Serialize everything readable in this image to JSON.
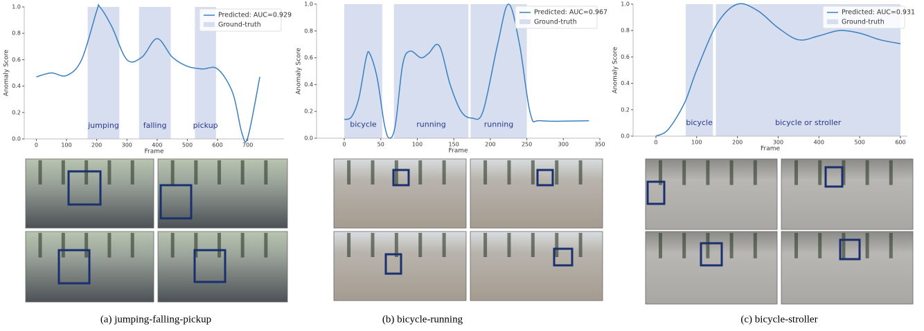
{
  "chart_data": [
    {
      "type": "line",
      "xlabel": "Frame",
      "ylabel": "Anomaly Score",
      "xlim": [
        -40,
        820
      ],
      "ylim": [
        0,
        1
      ],
      "xticks": [
        0,
        100,
        200,
        300,
        400,
        500,
        600,
        700
      ],
      "yticks": [
        {
          "value": 0,
          "label": "0.0"
        },
        0.2,
        0.4,
        0.6,
        0.8,
        {
          "value": 1,
          "label": "1.0"
        }
      ],
      "x": [
        0,
        50,
        100,
        150,
        200,
        210,
        250,
        300,
        350,
        400,
        450,
        500,
        550,
        600,
        650,
        680,
        700,
        740
      ],
      "series": [
        {
          "name": "Predicted: AUC=0.929",
          "color": "#3a7fc0",
          "values": [
            0.47,
            0.5,
            0.48,
            0.6,
            0.97,
            1.0,
            0.85,
            0.6,
            0.62,
            0.76,
            0.62,
            0.55,
            0.53,
            0.53,
            0.35,
            0.05,
            0.01,
            0.47
          ]
        }
      ],
      "ground_truth": {
        "name": "Ground-truth",
        "color": "#d6deef",
        "segments": [
          {
            "start": 170,
            "end": 275,
            "label": "jumping"
          },
          {
            "start": 340,
            "end": 445,
            "label": "falling"
          },
          {
            "start": 525,
            "end": 595,
            "label": "pickup"
          }
        ]
      }
    },
    {
      "type": "line",
      "xlabel": "Frame",
      "ylabel": "Anomaly Score",
      "xlim": [
        -38,
        350
      ],
      "ylim": [
        0,
        1
      ],
      "xticks": [
        0,
        50,
        100,
        150,
        200,
        250,
        300,
        350
      ],
      "yticks": [
        {
          "value": 0,
          "label": "0.0"
        },
        0.2,
        0.4,
        0.6,
        0.8,
        {
          "value": 1,
          "label": "1.0"
        }
      ],
      "x": [
        0,
        10,
        20,
        30,
        35,
        45,
        55,
        62,
        70,
        80,
        90,
        105,
        115,
        130,
        145,
        160,
        175,
        190,
        210,
        225,
        240,
        255,
        270,
        335
      ],
      "series": [
        {
          "name": "Predicted: AUC=0.967",
          "color": "#3a7fc0",
          "values": [
            0.14,
            0.16,
            0.3,
            0.6,
            0.63,
            0.45,
            0.1,
            0.0,
            0.1,
            0.55,
            0.65,
            0.6,
            0.63,
            0.69,
            0.4,
            0.2,
            0.15,
            0.2,
            0.7,
            1.0,
            0.7,
            0.18,
            0.13,
            0.13
          ]
        }
      ],
      "ground_truth": {
        "name": "Ground-truth",
        "color": "#d6deef",
        "segments": [
          {
            "start": 0,
            "end": 52,
            "label": "bicycle"
          },
          {
            "start": 68,
            "end": 170,
            "label": "running"
          },
          {
            "start": 173,
            "end": 250,
            "label": "running"
          }
        ]
      }
    },
    {
      "type": "line",
      "xlabel": "Frame",
      "ylabel": "Anomaly Score",
      "xlim": [
        -56,
        617
      ],
      "ylim": [
        0,
        1
      ],
      "xticks": [
        0,
        100,
        200,
        300,
        400,
        500,
        600
      ],
      "yticks": [
        {
          "value": 0,
          "label": "0.0"
        },
        0.2,
        0.4,
        0.6,
        0.8,
        {
          "value": 1,
          "label": "1.0"
        }
      ],
      "x": [
        0,
        30,
        70,
        100,
        150,
        200,
        250,
        300,
        350,
        400,
        450,
        500,
        550,
        600
      ],
      "series": [
        {
          "name": "Predicted: AUC=0.931",
          "color": "#3a7fc0",
          "values": [
            0.0,
            0.05,
            0.25,
            0.5,
            0.85,
            1.0,
            0.95,
            0.82,
            0.73,
            0.76,
            0.8,
            0.78,
            0.73,
            0.7
          ]
        }
      ],
      "ground_truth": {
        "name": "Ground-truth",
        "color": "#d6deef",
        "segments": [
          {
            "start": 73,
            "end": 140,
            "label": "bicycle"
          },
          {
            "start": 147,
            "end": 600,
            "label": "bicycle or stroller"
          }
        ]
      }
    }
  ],
  "captions": [
    "(a) jumping-falling-pickup",
    "(b) bicycle-running",
    "(c) bicycle-stroller"
  ]
}
